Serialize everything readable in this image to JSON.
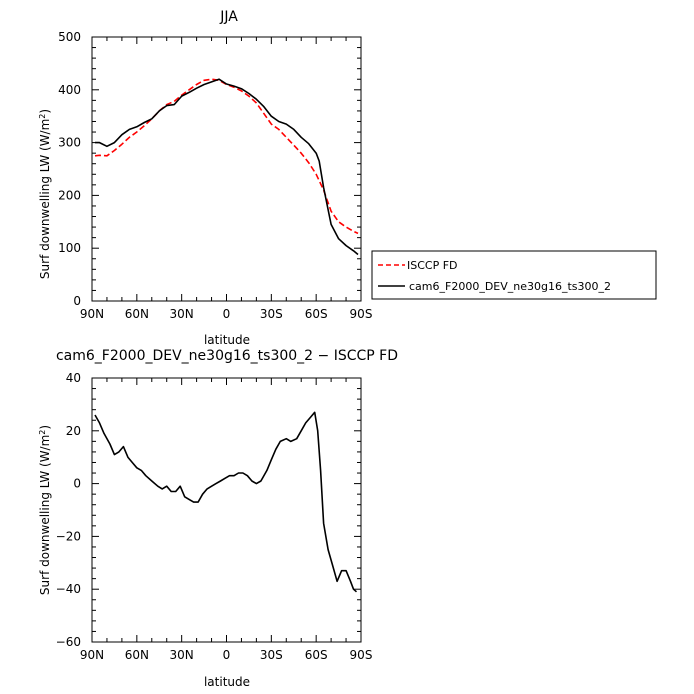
{
  "figure": {
    "season_title": "JJA"
  },
  "chart_data": [
    {
      "type": "line",
      "title": "JJA",
      "xlabel": "latitude",
      "ylabel": "Surf downwelling LW (W/m²)",
      "ylabel_parts": {
        "text": "Surf downwelling LW (W/m",
        "sup": "2",
        "close": ")"
      },
      "xlim": [
        90,
        -90
      ],
      "ylim": [
        0,
        500
      ],
      "x_ticks": [
        90,
        60,
        30,
        0,
        -30,
        -60,
        -90
      ],
      "x_tick_labels": [
        "90N",
        "60N",
        "30N",
        "0",
        "30S",
        "60S",
        "90S"
      ],
      "y_ticks": [
        0,
        100,
        200,
        300,
        400,
        500
      ],
      "y_tick_labels": [
        "0",
        "100",
        "200",
        "300",
        "400",
        "500"
      ],
      "legend": {
        "placement": "outside-right"
      },
      "series": [
        {
          "name": "ISCCP FD",
          "style": "dashed",
          "color": "#ff0000",
          "x": [
            88,
            85,
            80,
            75,
            70,
            65,
            60,
            55,
            50,
            45,
            40,
            35,
            30,
            25,
            20,
            15,
            10,
            5,
            0,
            -5,
            -10,
            -15,
            -20,
            -25,
            -30,
            -35,
            -40,
            -45,
            -50,
            -55,
            -60,
            -65,
            -70,
            -75,
            -80,
            -85,
            -88
          ],
          "values": [
            275,
            276,
            275,
            285,
            297,
            310,
            320,
            332,
            345,
            360,
            372,
            378,
            390,
            400,
            410,
            418,
            420,
            418,
            410,
            405,
            398,
            388,
            375,
            355,
            335,
            325,
            310,
            295,
            280,
            262,
            240,
            210,
            170,
            150,
            140,
            132,
            128
          ]
        },
        {
          "name": "cam6_F2000_DEV_ne30g16_ts300_2",
          "style": "solid",
          "color": "#000000",
          "x": [
            88,
            85,
            80,
            75,
            70,
            65,
            60,
            55,
            50,
            45,
            40,
            35,
            30,
            25,
            20,
            15,
            10,
            5,
            0,
            -5,
            -10,
            -15,
            -20,
            -25,
            -30,
            -35,
            -40,
            -45,
            -50,
            -55,
            -60,
            -62,
            -65,
            -70,
            -75,
            -80,
            -85,
            -88
          ],
          "values": [
            300,
            300,
            293,
            300,
            315,
            325,
            330,
            338,
            345,
            360,
            370,
            372,
            388,
            395,
            403,
            410,
            415,
            420,
            411,
            407,
            402,
            393,
            382,
            368,
            350,
            340,
            335,
            325,
            310,
            298,
            280,
            265,
            215,
            145,
            118,
            105,
            95,
            88
          ]
        }
      ]
    },
    {
      "type": "line",
      "title": "cam6_F2000_DEV_ne30g16_ts300_2 − ISCCP FD",
      "xlabel": "latitude",
      "ylabel": "Surf downwelling LW (W/m²)",
      "ylabel_parts": {
        "text": "Surf downwelling LW (W/m",
        "sup": "2",
        "close": ")"
      },
      "xlim": [
        90,
        -90
      ],
      "ylim": [
        -60,
        40
      ],
      "x_ticks": [
        90,
        60,
        30,
        0,
        -30,
        -60,
        -90
      ],
      "x_tick_labels": [
        "90N",
        "60N",
        "30N",
        "0",
        "30S",
        "60S",
        "90S"
      ],
      "y_ticks": [
        -60,
        -40,
        -20,
        0,
        20,
        40
      ],
      "y_tick_labels": [
        "−60",
        "−40",
        "−20",
        "0",
        "20",
        "40"
      ],
      "series": [
        {
          "style": "solid",
          "color": "#000000",
          "x": [
            88,
            85,
            82,
            78,
            75,
            72,
            69,
            66,
            63,
            60,
            57,
            54,
            50,
            46,
            43,
            40,
            37,
            34,
            31,
            28,
            25,
            22,
            19,
            16,
            13,
            10,
            7,
            4,
            1,
            -2,
            -5,
            -8,
            -11,
            -14,
            -17,
            -20,
            -23,
            -27,
            -30,
            -33,
            -36,
            -40,
            -43,
            -47,
            -50,
            -53,
            -56,
            -59,
            -61,
            -63,
            -65,
            -68,
            -71,
            -74,
            -77,
            -80,
            -83,
            -85,
            -87
          ],
          "values": [
            26,
            23,
            19,
            15,
            11,
            12,
            14,
            10,
            8,
            6,
            5,
            3,
            1,
            -1,
            -2,
            -1,
            -3,
            -3,
            -1,
            -5,
            -6,
            -7,
            -7,
            -4,
            -2,
            -1,
            0,
            1,
            2,
            3,
            3,
            4,
            4,
            3,
            1,
            0,
            1,
            5,
            9,
            13,
            16,
            17,
            16,
            17,
            20,
            23,
            25,
            27,
            20,
            5,
            -15,
            -25,
            -31,
            -37,
            -33,
            -33,
            -37,
            -40,
            -41
          ]
        }
      ]
    }
  ]
}
